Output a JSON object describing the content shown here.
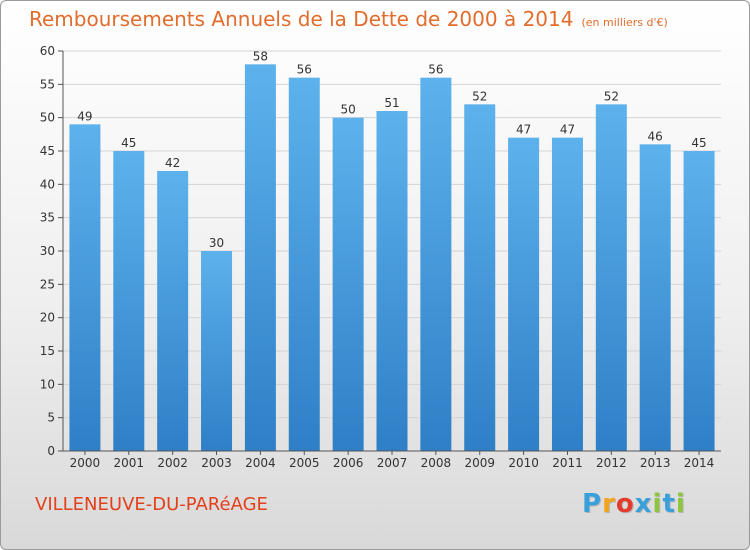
{
  "header": {
    "title": "Remboursements Annuels de la Dette de 2000 à 2014",
    "subtitle": "(en milliers d'€)"
  },
  "footer": {
    "commune": "VILLENEUVE-DU-PARéAGE",
    "brand": "Proxiti",
    "brand_letters": [
      "P",
      "r",
      "o",
      "x",
      "i",
      "t",
      "i"
    ],
    "brand_colors": [
      "#3aa0dc",
      "#f5a31a",
      "#e33c2c",
      "#3aa0dc",
      "#8cc63f",
      "#3aa0dc",
      "#8cc63f"
    ]
  },
  "colors": {
    "title": "#e36c2c",
    "bar_top": "#5db2ec",
    "bar_bottom": "#2f7fc7",
    "grid": "#d4d4d4",
    "axis": "#555555"
  },
  "chart_data": {
    "type": "bar",
    "categories": [
      "2000",
      "2001",
      "2002",
      "2003",
      "2004",
      "2005",
      "2006",
      "2007",
      "2008",
      "2009",
      "2010",
      "2011",
      "2012",
      "2013",
      "2014"
    ],
    "values": [
      49,
      45,
      42,
      30,
      58,
      56,
      50,
      51,
      56,
      52,
      47,
      47,
      52,
      46,
      45
    ],
    "ylim": [
      0,
      60
    ],
    "yticks": [
      0,
      5,
      10,
      15,
      20,
      25,
      30,
      35,
      40,
      45,
      50,
      55,
      60
    ],
    "grid": true,
    "data_labels": true
  }
}
